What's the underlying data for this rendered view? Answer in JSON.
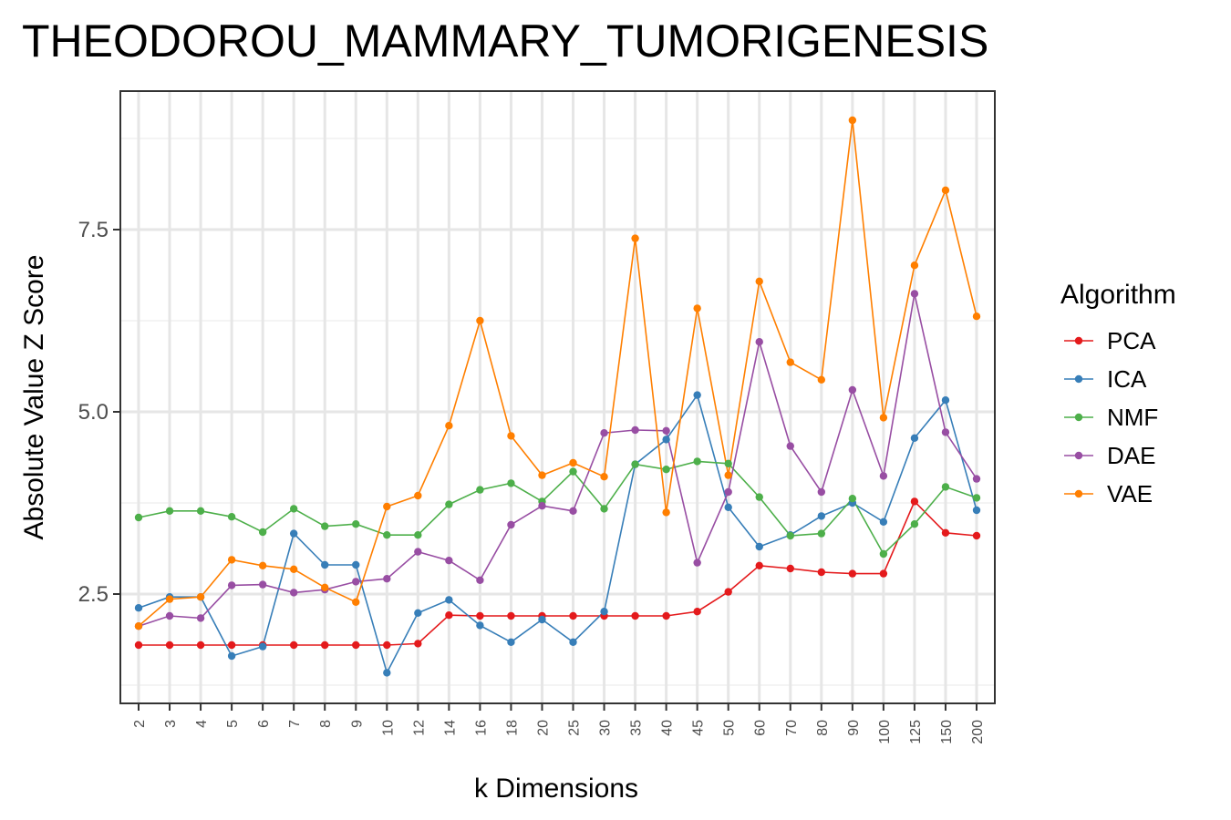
{
  "chart_data": {
    "type": "line",
    "title": "THEODOROU_MAMMARY_TUMORIGENESIS",
    "xlabel": "k Dimensions",
    "ylabel": "Absolute Value Z Score",
    "categories": [
      "2",
      "3",
      "4",
      "5",
      "6",
      "7",
      "8",
      "9",
      "10",
      "12",
      "14",
      "16",
      "18",
      "20",
      "25",
      "30",
      "35",
      "40",
      "45",
      "50",
      "60",
      "70",
      "80",
      "90",
      "100",
      "125",
      "150",
      "200"
    ],
    "y_ticks": [
      2.5,
      5.0,
      7.5
    ],
    "y_tick_labels": [
      "2.5",
      "5.0",
      "7.5"
    ],
    "ylim": [
      1.0,
      9.4
    ],
    "grid": true,
    "legend_title": "Algorithm",
    "legend_position": "right",
    "series": [
      {
        "name": "PCA",
        "color": "#e41a1c",
        "values": [
          1.8,
          1.8,
          1.8,
          1.8,
          1.8,
          1.8,
          1.8,
          1.8,
          1.8,
          1.82,
          2.21,
          2.2,
          2.2,
          2.2,
          2.2,
          2.2,
          2.2,
          2.2,
          2.26,
          2.53,
          2.89,
          2.85,
          2.8,
          2.78,
          2.78,
          3.77,
          3.34,
          3.3
        ]
      },
      {
        "name": "ICA",
        "color": "#377eb8",
        "values": [
          2.31,
          2.46,
          2.46,
          1.65,
          1.78,
          3.33,
          2.9,
          2.9,
          1.42,
          2.24,
          2.42,
          2.07,
          1.84,
          2.15,
          1.84,
          2.26,
          4.28,
          4.62,
          5.23,
          3.69,
          3.15,
          3.31,
          3.57,
          3.75,
          3.49,
          4.64,
          5.16,
          3.65
        ]
      },
      {
        "name": "NMF",
        "color": "#4daf4a",
        "values": [
          3.55,
          3.64,
          3.64,
          3.56,
          3.35,
          3.67,
          3.43,
          3.46,
          3.31,
          3.31,
          3.73,
          3.93,
          4.02,
          3.77,
          4.18,
          3.67,
          4.28,
          4.21,
          4.32,
          4.29,
          3.83,
          3.3,
          3.33,
          3.81,
          3.05,
          3.46,
          3.97,
          3.82
        ]
      },
      {
        "name": "DAE",
        "color": "#984ea3",
        "values": [
          2.06,
          2.2,
          2.17,
          2.62,
          2.63,
          2.52,
          2.56,
          2.67,
          2.71,
          3.08,
          2.96,
          2.69,
          3.45,
          3.71,
          3.64,
          4.71,
          4.75,
          4.74,
          2.93,
          3.9,
          5.96,
          4.53,
          3.9,
          5.3,
          4.12,
          6.62,
          4.72,
          4.08
        ]
      },
      {
        "name": "VAE",
        "color": "#ff7f00",
        "values": [
          2.06,
          2.43,
          2.46,
          2.97,
          2.89,
          2.84,
          2.59,
          2.39,
          3.7,
          3.85,
          4.81,
          6.25,
          4.67,
          4.13,
          4.3,
          4.11,
          7.38,
          3.62,
          6.42,
          4.13,
          6.79,
          5.68,
          5.44,
          9.0,
          4.92,
          7.01,
          8.04,
          6.31
        ]
      }
    ]
  }
}
